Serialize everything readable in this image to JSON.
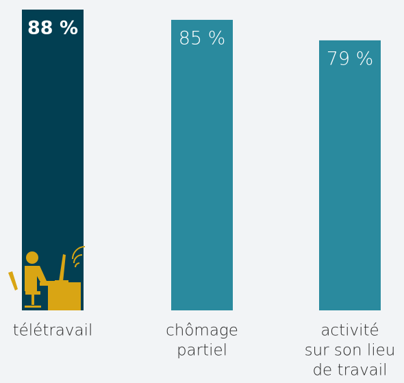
{
  "chart_data": {
    "type": "bar",
    "categories": [
      [
        "télétravail"
      ],
      [
        "chômage",
        "partiel"
      ],
      [
        "activité",
        "sur son lieu",
        "de travail"
      ]
    ],
    "values": [
      88,
      85,
      79
    ],
    "value_labels": [
      "88 %",
      "85 %",
      "79 %"
    ],
    "colors": [
      "#023f52",
      "#2a8a9e",
      "#2a8a9e"
    ]
  }
}
